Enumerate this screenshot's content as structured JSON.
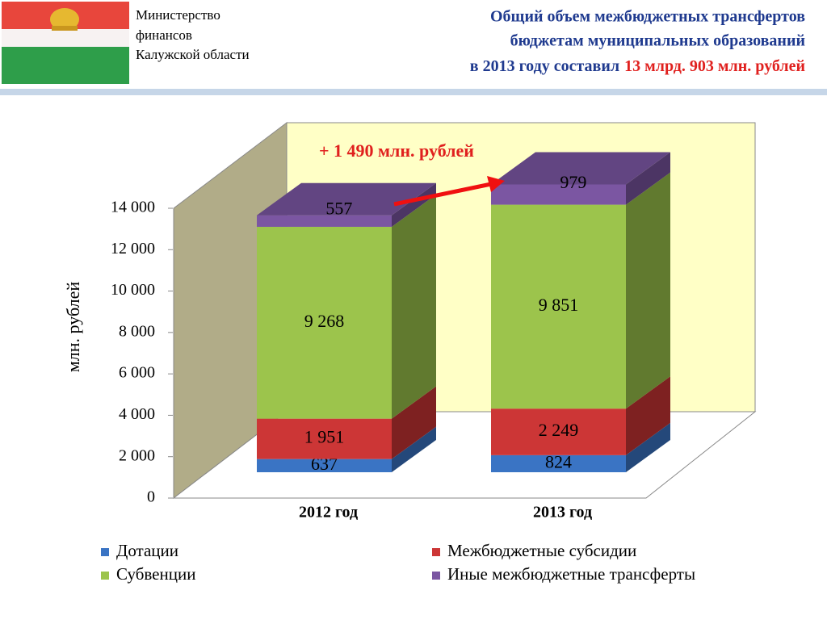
{
  "header": {
    "org": [
      "Министерство",
      "финансов",
      "Калужской области"
    ],
    "title": [
      "Общий объем межбюджетных трансфертов",
      "бюджетам муниципальных образований",
      "в 2013 году составил"
    ],
    "title_highlight": "13 млрд. 903 млн. рублей"
  },
  "chart_data": {
    "type": "bar3d_stacked",
    "y_label": "млн. рублей",
    "annotation": "+ 1 490 млн. рублей",
    "categories": [
      "2012 год",
      "2013 год"
    ],
    "series": [
      {
        "name": "Дотации",
        "color": "#3a74c4",
        "values": [
          637,
          824
        ],
        "value_labels": [
          "637",
          "824"
        ]
      },
      {
        "name": "Межбюджетные субсидии",
        "color": "#cc3636",
        "values": [
          1951,
          2249
        ],
        "value_labels": [
          "1 951",
          "2 249"
        ]
      },
      {
        "name": "Субвенции",
        "color": "#9cc44c",
        "values": [
          9268,
          9851
        ],
        "value_labels": [
          "9 268",
          "9 851"
        ]
      },
      {
        "name": "Иные межбюджетные трансферты",
        "color": "#7b56a2",
        "values": [
          557,
          979
        ],
        "value_labels": [
          "557",
          "979"
        ]
      }
    ],
    "ylim": [
      0,
      14000
    ],
    "yticks": [
      0,
      {
        "value": 2000,
        "label": "2 000"
      },
      {
        "value": 4000,
        "label": "4 000"
      },
      {
        "value": 6000,
        "label": "6 000"
      },
      {
        "value": 8000,
        "label": "8 000"
      },
      {
        "value": 10000,
        "label": "10 000"
      },
      {
        "value": 12000,
        "label": "12 000"
      },
      {
        "value": 14000,
        "label": "14 000"
      }
    ],
    "legend": "bottom"
  }
}
